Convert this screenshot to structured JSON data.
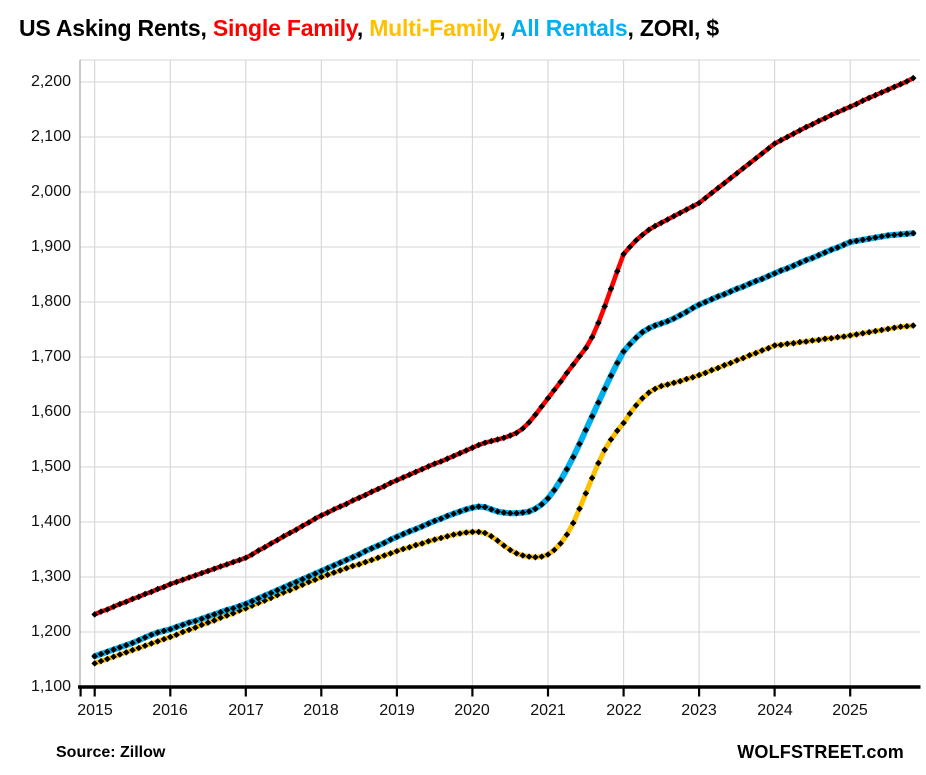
{
  "title": {
    "parts": [
      {
        "text": "US Asking Rents, ",
        "color": "#000000"
      },
      {
        "text": "Single Family",
        "color": "#ff0000"
      },
      {
        "text": ", ",
        "color": "#000000"
      },
      {
        "text": "Multi-Family",
        "color": "#ffc000"
      },
      {
        "text": ", ",
        "color": "#000000"
      },
      {
        "text": "All Rentals",
        "color": "#00b0f0"
      },
      {
        "text": ", ZORI, $",
        "color": "#000000"
      }
    ]
  },
  "footer": {
    "source": "Source: Zillow",
    "site": "WOLFSTREET.com"
  },
  "colors": {
    "single_family": "#ff0000",
    "multi_family": "#ffc000",
    "all_rentals": "#00b0f0",
    "marker": "#000000",
    "grid": "#d6d6d6",
    "axis_minor": "#a6a6a6",
    "axis_main": "#000000"
  },
  "chart_data": {
    "type": "line",
    "title": "US Asking Rents, Single Family, Multi-Family, All Rentals, ZORI, $",
    "xlabel": "",
    "ylabel": "",
    "grid": true,
    "legend_position": "colored words in title",
    "x_frequency": "monthly",
    "x_start": "2015-01",
    "x_end": "2025-11",
    "ylim": [
      1100,
      2200
    ],
    "y_tick_values": [
      1100,
      1200,
      1300,
      1400,
      1500,
      1600,
      1700,
      1800,
      1900,
      2000,
      2100,
      2200
    ],
    "y_tick_labels": [
      "1,100",
      "1,200",
      "1,300",
      "1,400",
      "1,500",
      "1,600",
      "1,700",
      "1,800",
      "1,900",
      "2,000",
      "2,100",
      "2,200"
    ],
    "x_tick_labels": [
      "2015",
      "2016",
      "2017",
      "2018",
      "2019",
      "2020",
      "2021",
      "2022",
      "2023",
      "2024",
      "2025"
    ],
    "marker": "black diamond, one per month",
    "series": [
      {
        "name": "Multi-Family",
        "color": "#ffc000",
        "values": [
          1143,
          1147,
          1151,
          1155,
          1159,
          1163,
          1167,
          1171,
          1175,
          1179,
          1183,
          1187,
          1191,
          1195,
          1200,
          1204,
          1208,
          1213,
          1217,
          1221,
          1226,
          1230,
          1234,
          1239,
          1243,
          1248,
          1253,
          1257,
          1262,
          1267,
          1272,
          1276,
          1281,
          1286,
          1291,
          1295,
          1300,
          1304,
          1308,
          1312,
          1316,
          1320,
          1323,
          1327,
          1331,
          1335,
          1339,
          1343,
          1347,
          1351,
          1354,
          1358,
          1361,
          1365,
          1368,
          1371,
          1374,
          1377,
          1379,
          1381,
          1382,
          1382,
          1380,
          1374,
          1366,
          1357,
          1349,
          1343,
          1339,
          1337,
          1336,
          1337,
          1341,
          1349,
          1361,
          1377,
          1398,
          1424,
          1452,
          1480,
          1507,
          1531,
          1550,
          1566,
          1580,
          1597,
          1612,
          1625,
          1635,
          1642,
          1647,
          1650,
          1653,
          1656,
          1660,
          1663,
          1667,
          1671,
          1676,
          1680,
          1685,
          1689,
          1694,
          1698,
          1703,
          1707,
          1712,
          1716,
          1721,
          1722,
          1724,
          1725,
          1727,
          1728,
          1730,
          1731,
          1733,
          1734,
          1736,
          1737,
          1739,
          1741,
          1743,
          1745,
          1747,
          1749,
          1751,
          1753,
          1755,
          1756,
          1757
        ]
      },
      {
        "name": "All Rentals",
        "color": "#00b0f0",
        "values": [
          1156,
          1160,
          1164,
          1168,
          1172,
          1176,
          1180,
          1185,
          1190,
          1195,
          1199,
          1202,
          1205,
          1209,
          1213,
          1217,
          1220,
          1224,
          1228,
          1232,
          1236,
          1240,
          1243,
          1247,
          1251,
          1256,
          1261,
          1266,
          1271,
          1276,
          1281,
          1286,
          1291,
          1296,
          1301,
          1306,
          1311,
          1316,
          1321,
          1326,
          1331,
          1336,
          1341,
          1347,
          1352,
          1357,
          1362,
          1368,
          1373,
          1378,
          1383,
          1387,
          1392,
          1397,
          1402,
          1406,
          1411,
          1415,
          1419,
          1423,
          1426,
          1428,
          1427,
          1423,
          1419,
          1417,
          1416,
          1416,
          1417,
          1419,
          1424,
          1432,
          1443,
          1458,
          1476,
          1496,
          1518,
          1542,
          1567,
          1592,
          1617,
          1642,
          1666,
          1689,
          1710,
          1723,
          1735,
          1745,
          1752,
          1757,
          1761,
          1765,
          1770,
          1776,
          1782,
          1789,
          1795,
          1800,
          1805,
          1810,
          1814,
          1819,
          1824,
          1828,
          1833,
          1838,
          1842,
          1847,
          1852,
          1857,
          1861,
          1866,
          1871,
          1876,
          1880,
          1885,
          1890,
          1895,
          1899,
          1904,
          1909,
          1911,
          1913,
          1915,
          1917,
          1919,
          1921,
          1922,
          1923,
          1924,
          1925
        ]
      },
      {
        "name": "Single Family",
        "color": "#ff0000",
        "values": [
          1232,
          1237,
          1241,
          1246,
          1251,
          1255,
          1260,
          1264,
          1269,
          1273,
          1278,
          1282,
          1287,
          1291,
          1295,
          1299,
          1303,
          1307,
          1311,
          1315,
          1319,
          1323,
          1327,
          1331,
          1335,
          1341,
          1348,
          1354,
          1361,
          1367,
          1374,
          1380,
          1386,
          1393,
          1399,
          1406,
          1412,
          1417,
          1423,
          1428,
          1433,
          1439,
          1444,
          1449,
          1455,
          1460,
          1465,
          1471,
          1476,
          1481,
          1486,
          1491,
          1496,
          1501,
          1506,
          1510,
          1515,
          1520,
          1525,
          1530,
          1535,
          1540,
          1544,
          1547,
          1550,
          1553,
          1557,
          1562,
          1570,
          1581,
          1595,
          1610,
          1625,
          1640,
          1655,
          1671,
          1686,
          1701,
          1716,
          1736,
          1762,
          1792,
          1824,
          1856,
          1887,
          1900,
          1912,
          1922,
          1931,
          1938,
          1944,
          1950,
          1956,
          1962,
          1968,
          1974,
          1980,
          1989,
          1998,
          2007,
          2016,
          2025,
          2034,
          2043,
          2052,
          2061,
          2070,
          2079,
          2088,
          2094,
          2100,
          2106,
          2112,
          2118,
          2123,
          2129,
          2134,
          2140,
          2145,
          2150,
          2155,
          2160,
          2166,
          2171,
          2176,
          2181,
          2186,
          2191,
          2196,
          2201,
          2207
        ]
      }
    ]
  }
}
